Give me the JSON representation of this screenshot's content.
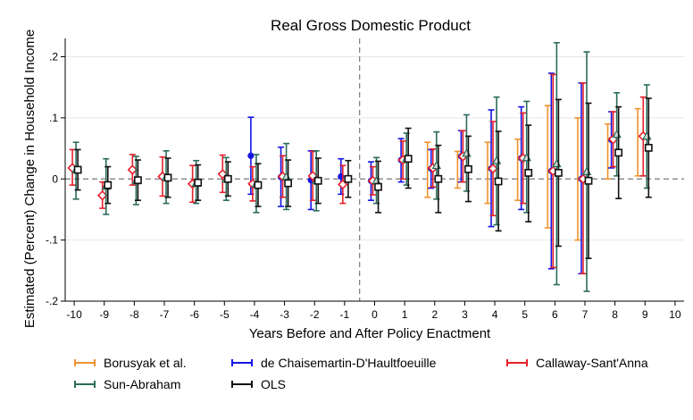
{
  "chart_data": {
    "type": "scatter",
    "title": "Real Gross Domestic Product",
    "xlabel": "Years Before and After Policy Enactment",
    "ylabel": "Estimated (Percent) Change in Household Income",
    "xlim": [
      -10.3,
      10.3
    ],
    "ylim": [
      -0.2,
      0.23
    ],
    "xticks": [
      "-10",
      "-9",
      "-8",
      "-7",
      "-6",
      "-5",
      "-4",
      "-3",
      "-2",
      "-1",
      "0",
      "1",
      "2",
      "3",
      "4",
      "5",
      "6",
      "7",
      "8",
      "9",
      "10"
    ],
    "yticks": [
      {
        "value": 0.2,
        "label": ".2"
      },
      {
        "value": 0.1,
        "label": ".1"
      },
      {
        "value": 0,
        "label": "0"
      },
      {
        "value": -0.1,
        "label": "-.1"
      },
      {
        "value": -0.2,
        "label": "-.2"
      }
    ],
    "reference_lines": {
      "y": 0,
      "x": -0.5
    },
    "grid": "horizontal",
    "legend_position": "bottom",
    "series": [
      {
        "name": "Borusyak et al.",
        "color": "#f0922e",
        "marker": "none",
        "offset": -0.24,
        "points": [
          {
            "x": 2,
            "y": 0.02,
            "lo": -0.03,
            "hi": 0.06
          },
          {
            "x": 3,
            "y": 0.015,
            "lo": -0.015,
            "hi": 0.045
          },
          {
            "x": 4,
            "y": 0.01,
            "lo": -0.04,
            "hi": 0.06
          },
          {
            "x": 5,
            "y": 0.02,
            "lo": -0.035,
            "hi": 0.065
          },
          {
            "x": 6,
            "y": 0.02,
            "lo": -0.08,
            "hi": 0.12
          },
          {
            "x": 7,
            "y": 0.0,
            "lo": -0.1,
            "hi": 0.1
          },
          {
            "x": 8,
            "y": 0.045,
            "lo": 0.0,
            "hi": 0.09
          },
          {
            "x": 9,
            "y": 0.06,
            "lo": 0.005,
            "hi": 0.115
          }
        ]
      },
      {
        "name": "de Chaisemartin-D'Haultfoeuille",
        "color": "#1414e6",
        "marker": "circle",
        "offset": -0.12,
        "points": [
          {
            "x": -4,
            "y": 0.038,
            "lo": -0.025,
            "hi": 0.101
          },
          {
            "x": -3,
            "y": 0.003,
            "lo": -0.045,
            "hi": 0.052
          },
          {
            "x": -2,
            "y": -0.002,
            "lo": -0.05,
            "hi": 0.046
          },
          {
            "x": -1,
            "y": 0.004,
            "lo": -0.025,
            "hi": 0.033
          },
          {
            "x": 0,
            "y": -0.003,
            "lo": -0.035,
            "hi": 0.028
          },
          {
            "x": 1,
            "y": 0.031,
            "lo": -0.005,
            "hi": 0.066
          },
          {
            "x": 2,
            "y": 0.017,
            "lo": -0.015,
            "hi": 0.048
          },
          {
            "x": 3,
            "y": 0.037,
            "lo": -0.005,
            "hi": 0.079
          },
          {
            "x": 4,
            "y": 0.017,
            "lo": -0.078,
            "hi": 0.113
          },
          {
            "x": 5,
            "y": 0.034,
            "lo": -0.05,
            "hi": 0.118
          },
          {
            "x": 6,
            "y": 0.013,
            "lo": -0.147,
            "hi": 0.173
          },
          {
            "x": 7,
            "y": 0.0,
            "lo": -0.155,
            "hi": 0.157
          },
          {
            "x": 8,
            "y": 0.064,
            "lo": 0.018,
            "hi": 0.11
          }
        ]
      },
      {
        "name": "Callaway-Sant'Anna",
        "color": "#e6202a",
        "marker": "diamond",
        "offset": -0.06,
        "points": [
          {
            "x": -10,
            "y": 0.018,
            "lo": -0.01,
            "hi": 0.048
          },
          {
            "x": -9,
            "y": -0.027,
            "lo": -0.048,
            "hi": -0.005
          },
          {
            "x": -8,
            "y": 0.015,
            "lo": -0.01,
            "hi": 0.04
          },
          {
            "x": -7,
            "y": 0.004,
            "lo": -0.028,
            "hi": 0.036
          },
          {
            "x": -6,
            "y": -0.008,
            "lo": -0.038,
            "hi": 0.022
          },
          {
            "x": -5,
            "y": 0.008,
            "lo": -0.022,
            "hi": 0.039
          },
          {
            "x": -4,
            "y": -0.008,
            "lo": -0.036,
            "hi": 0.02
          },
          {
            "x": -3,
            "y": 0.004,
            "lo": -0.03,
            "hi": 0.038
          },
          {
            "x": -2,
            "y": 0.005,
            "lo": -0.035,
            "hi": 0.045
          },
          {
            "x": -1,
            "y": -0.009,
            "lo": -0.04,
            "hi": 0.022
          },
          {
            "x": 0,
            "y": -0.003,
            "lo": -0.026,
            "hi": 0.02
          },
          {
            "x": 1,
            "y": 0.031,
            "lo": 0.0,
            "hi": 0.062
          },
          {
            "x": 2,
            "y": 0.018,
            "lo": -0.013,
            "hi": 0.049
          },
          {
            "x": 3,
            "y": 0.037,
            "lo": -0.005,
            "hi": 0.079
          },
          {
            "x": 4,
            "y": 0.017,
            "lo": -0.06,
            "hi": 0.094
          },
          {
            "x": 5,
            "y": 0.034,
            "lo": -0.04,
            "hi": 0.108
          },
          {
            "x": 6,
            "y": 0.013,
            "lo": -0.145,
            "hi": 0.171
          },
          {
            "x": 7,
            "y": 0.0,
            "lo": -0.155,
            "hi": 0.157
          },
          {
            "x": 8,
            "y": 0.065,
            "lo": 0.02,
            "hi": 0.11
          },
          {
            "x": 9,
            "y": 0.07,
            "lo": 0.005,
            "hi": 0.134
          }
        ]
      },
      {
        "name": "Sun-Abraham",
        "color": "#2a6b5a",
        "marker": "triangle",
        "offset": 0.06,
        "points": [
          {
            "x": -10,
            "y": 0.015,
            "lo": -0.033,
            "hi": 0.06
          },
          {
            "x": -9,
            "y": -0.012,
            "lo": -0.058,
            "hi": 0.033
          },
          {
            "x": -8,
            "y": -0.003,
            "lo": -0.042,
            "hi": 0.037
          },
          {
            "x": -7,
            "y": 0.003,
            "lo": -0.04,
            "hi": 0.046
          },
          {
            "x": -6,
            "y": -0.007,
            "lo": -0.04,
            "hi": 0.03
          },
          {
            "x": -5,
            "y": 0.0,
            "lo": -0.035,
            "hi": 0.035
          },
          {
            "x": -4,
            "y": -0.008,
            "lo": -0.055,
            "hi": 0.04
          },
          {
            "x": -3,
            "y": 0.004,
            "lo": -0.05,
            "hi": 0.058
          },
          {
            "x": -2,
            "y": -0.003,
            "lo": -0.052,
            "hi": 0.046
          },
          {
            "x": 0,
            "y": -0.003,
            "lo": -0.04,
            "hi": 0.035
          },
          {
            "x": 1,
            "y": 0.033,
            "lo": -0.01,
            "hi": 0.075
          },
          {
            "x": 2,
            "y": 0.022,
            "lo": -0.033,
            "hi": 0.077
          },
          {
            "x": 3,
            "y": 0.042,
            "lo": -0.02,
            "hi": 0.105
          },
          {
            "x": 4,
            "y": 0.03,
            "lo": -0.075,
            "hi": 0.134
          },
          {
            "x": 5,
            "y": 0.035,
            "lo": -0.055,
            "hi": 0.127
          },
          {
            "x": 6,
            "y": 0.025,
            "lo": -0.173,
            "hi": 0.223
          },
          {
            "x": 7,
            "y": 0.012,
            "lo": -0.184,
            "hi": 0.208
          },
          {
            "x": 8,
            "y": 0.073,
            "lo": 0.005,
            "hi": 0.141
          },
          {
            "x": 9,
            "y": 0.07,
            "lo": -0.015,
            "hi": 0.154
          }
        ]
      },
      {
        "name": "OLS",
        "color": "#111111",
        "marker": "square",
        "offset": 0.12,
        "points": [
          {
            "x": -10,
            "y": 0.015,
            "lo": -0.018,
            "hi": 0.048
          },
          {
            "x": -9,
            "y": -0.01,
            "lo": -0.04,
            "hi": 0.02
          },
          {
            "x": -8,
            "y": -0.002,
            "lo": -0.035,
            "hi": 0.031
          },
          {
            "x": -7,
            "y": 0.002,
            "lo": -0.03,
            "hi": 0.034
          },
          {
            "x": -6,
            "y": -0.006,
            "lo": -0.035,
            "hi": 0.023
          },
          {
            "x": -5,
            "y": 0.0,
            "lo": -0.028,
            "hi": 0.028
          },
          {
            "x": -4,
            "y": -0.01,
            "lo": -0.045,
            "hi": 0.025
          },
          {
            "x": -3,
            "y": -0.007,
            "lo": -0.045,
            "hi": 0.031
          },
          {
            "x": -2,
            "y": -0.003,
            "lo": -0.04,
            "hi": 0.034
          },
          {
            "x": -1,
            "y": 0.0,
            "lo": -0.03,
            "hi": 0.03
          },
          {
            "x": 0,
            "y": -0.013,
            "lo": -0.055,
            "hi": 0.029
          },
          {
            "x": 1,
            "y": 0.033,
            "lo": -0.015,
            "hi": 0.083
          },
          {
            "x": 2,
            "y": 0.0,
            "lo": -0.055,
            "hi": 0.055
          },
          {
            "x": 3,
            "y": 0.016,
            "lo": -0.037,
            "hi": 0.07
          },
          {
            "x": 4,
            "y": -0.004,
            "lo": -0.085,
            "hi": 0.078
          },
          {
            "x": 5,
            "y": 0.01,
            "lo": -0.07,
            "hi": 0.088
          },
          {
            "x": 6,
            "y": 0.01,
            "lo": -0.11,
            "hi": 0.13
          },
          {
            "x": 7,
            "y": -0.003,
            "lo": -0.13,
            "hi": 0.124
          },
          {
            "x": 8,
            "y": 0.043,
            "lo": -0.032,
            "hi": 0.118
          },
          {
            "x": 9,
            "y": 0.051,
            "lo": -0.03,
            "hi": 0.132
          }
        ]
      }
    ],
    "legend": [
      {
        "label": "Borusyak et al.",
        "color": "#f0922e"
      },
      {
        "label": "de Chaisemartin-D'Haultfoeuille",
        "color": "#1414e6"
      },
      {
        "label": "Callaway-Sant'Anna",
        "color": "#e6202a"
      },
      {
        "label": "Sun-Abraham",
        "color": "#2a6b5a"
      },
      {
        "label": "OLS",
        "color": "#111111"
      }
    ]
  }
}
